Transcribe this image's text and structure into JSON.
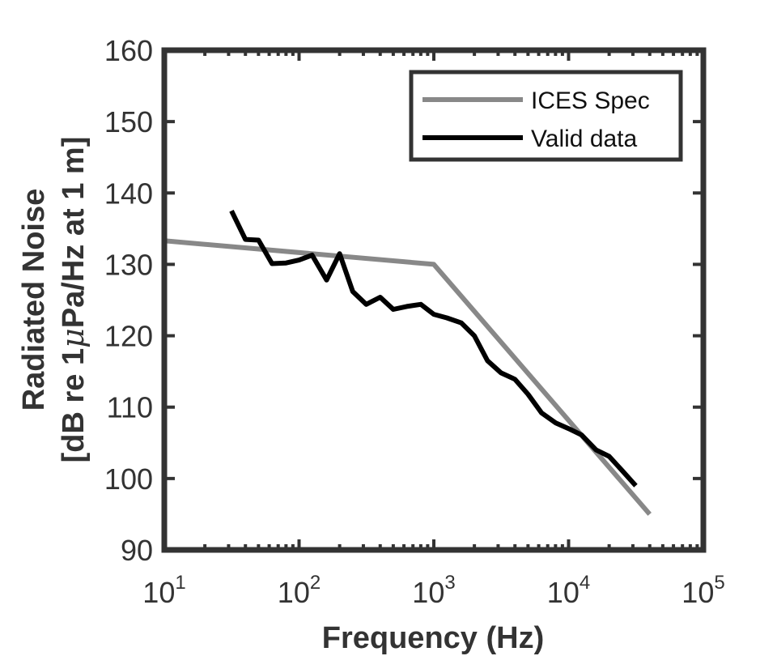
{
  "chart_data": {
    "type": "line",
    "title": "",
    "xlabel": "Frequency (Hz)",
    "ylabel_line1": "Radiated Noise",
    "ylabel_line2_prefix": "[dB re 1",
    "ylabel_mu": "μ",
    "ylabel_line2_suffix": "Pa/Hz at 1 m]",
    "x_scale": "log",
    "xlim": [
      10,
      100000
    ],
    "ylim": [
      90,
      160
    ],
    "x_ticks": [
      {
        "base": "10",
        "exp": "1",
        "value": 10
      },
      {
        "base": "10",
        "exp": "2",
        "value": 100
      },
      {
        "base": "10",
        "exp": "3",
        "value": 1000
      },
      {
        "base": "10",
        "exp": "4",
        "value": 10000
      },
      {
        "base": "10",
        "exp": "5",
        "value": 100000
      }
    ],
    "y_ticks": [
      "90",
      "100",
      "110",
      "120",
      "130",
      "140",
      "150",
      "160"
    ],
    "grid": false,
    "legend_position": "top-right",
    "series": [
      {
        "name": "ICES Spec",
        "color": "#888888",
        "x": [
          10,
          1000,
          40000
        ],
        "y": [
          133.3,
          130.0,
          95.0
        ]
      },
      {
        "name": "Valid data",
        "color": "#000000",
        "x": [
          31.5,
          40,
          50,
          63,
          80,
          100,
          125,
          160,
          200,
          250,
          315,
          400,
          500,
          630,
          800,
          1000,
          1250,
          1600,
          2000,
          2500,
          3150,
          4000,
          5000,
          6300,
          8000,
          10000,
          12500,
          16000,
          20000,
          25000,
          31500
        ],
        "y": [
          137.5,
          133.5,
          133.4,
          130.1,
          130.2,
          130.6,
          131.3,
          127.8,
          131.5,
          126.2,
          124.4,
          125.4,
          123.7,
          124.1,
          124.4,
          123.0,
          122.5,
          121.8,
          120.0,
          116.5,
          114.8,
          113.9,
          111.8,
          109.2,
          107.8,
          107.0,
          106.1,
          104.0,
          103.1,
          101.1,
          99.0
        ]
      }
    ]
  }
}
